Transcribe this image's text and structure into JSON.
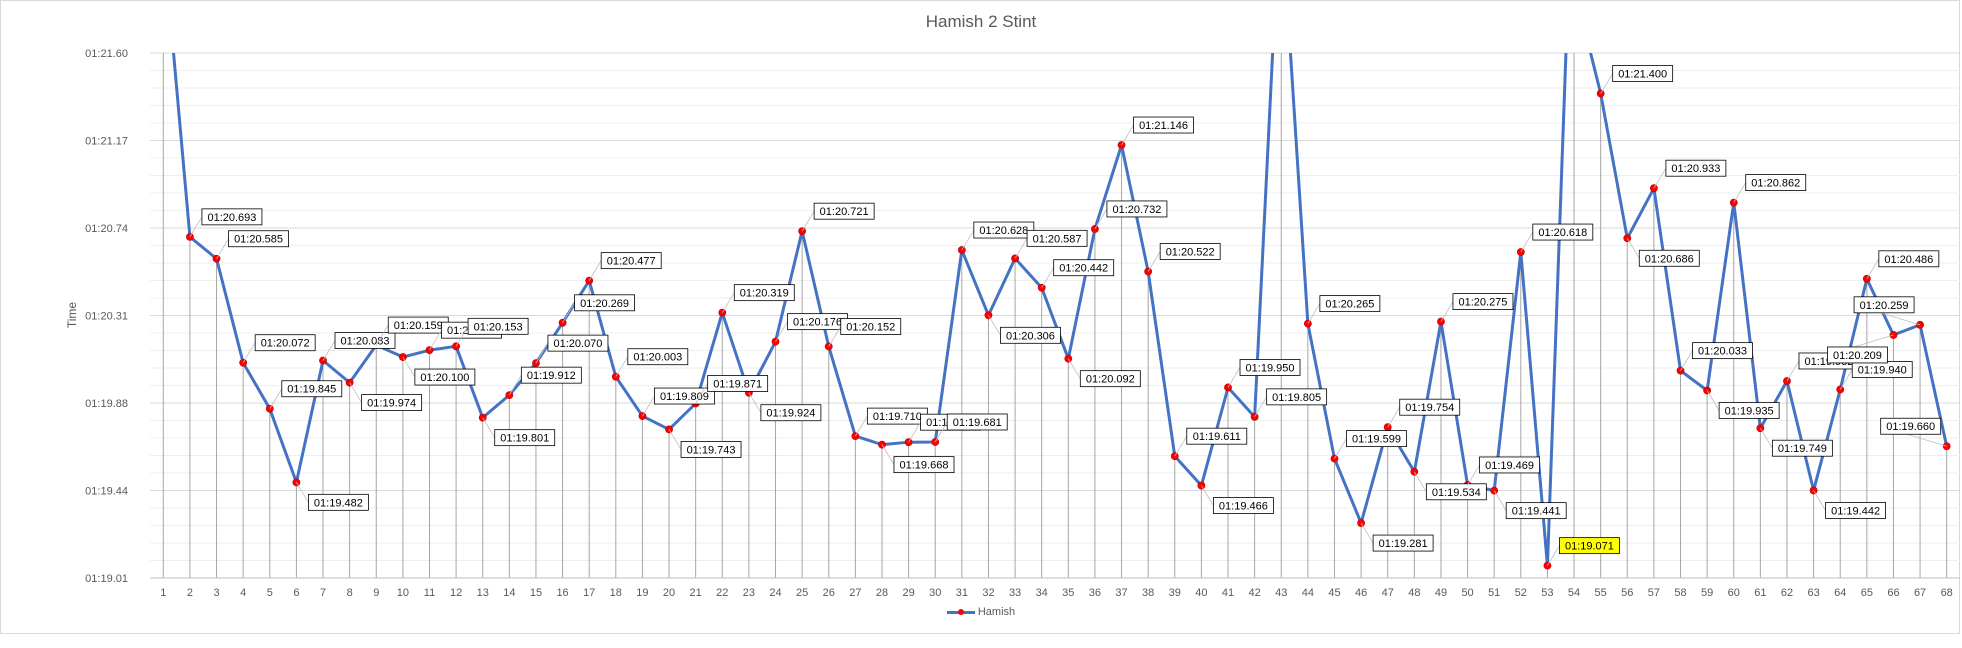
{
  "chart_data": {
    "type": "line",
    "title": "Hamish 2 Stint",
    "xlabel": "",
    "ylabel": "Time",
    "y_tick_labels": [
      "01:19.01",
      "01:19.44",
      "01:19.88",
      "01:20.31",
      "01:20.74",
      "01:21.17",
      "01:21.60"
    ],
    "ylim_seconds": [
      79.01,
      81.6
    ],
    "grid": true,
    "legend_position": "bottom",
    "series": [
      {
        "name": "Hamish",
        "color": "#4472c4",
        "marker_color": "#ff0000",
        "x": [
          1,
          2,
          3,
          4,
          5,
          6,
          7,
          8,
          9,
          10,
          11,
          12,
          13,
          14,
          15,
          16,
          17,
          18,
          19,
          20,
          21,
          22,
          23,
          24,
          25,
          26,
          27,
          28,
          29,
          30,
          31,
          32,
          33,
          34,
          35,
          36,
          37,
          38,
          39,
          40,
          41,
          42,
          43,
          44,
          45,
          46,
          47,
          48,
          49,
          50,
          51,
          52,
          53,
          54,
          55,
          56,
          57,
          58,
          59,
          60,
          61,
          62,
          63,
          64,
          65,
          66,
          67,
          68
        ],
        "values": [
          null,
          80.693,
          80.585,
          80.072,
          79.845,
          79.482,
          80.083,
          79.974,
          80.159,
          80.1,
          80.134,
          80.153,
          79.801,
          79.912,
          80.07,
          80.269,
          80.477,
          80.003,
          79.809,
          79.743,
          79.871,
          80.319,
          79.924,
          80.176,
          80.721,
          80.152,
          79.71,
          79.668,
          79.68,
          79.681,
          80.628,
          80.306,
          80.587,
          80.442,
          80.092,
          80.732,
          81.146,
          80.522,
          79.611,
          79.466,
          79.95,
          79.805,
          null,
          80.265,
          79.599,
          79.281,
          79.754,
          79.534,
          80.275,
          79.469,
          79.441,
          80.618,
          79.071,
          null,
          81.4,
          80.686,
          80.933,
          80.033,
          79.935,
          80.862,
          79.749,
          79.982,
          79.442,
          79.94,
          80.486,
          80.209,
          80.259,
          79.66
        ],
        "labels": [
          null,
          "01:20.693",
          "01:20.585",
          "01:20.072",
          "01:19.845",
          "01:19.482",
          "01:20.083",
          "01:19.974",
          "01:20.159",
          "01:20.100",
          "01:20.134",
          "01:20.153",
          "01:19.801",
          "01:19.912",
          "01:20.070",
          "01:20.269",
          "01:20.477",
          "01:20.003",
          "01:19.809",
          "01:19.743",
          "01:19.871",
          "01:20.319",
          "01:19.924",
          "01:20.176",
          "01:20.721",
          "01:20.152",
          "01:19.710",
          "01:19.668",
          "01:19.680",
          "01:19.681",
          "01:20.628",
          "01:20.306",
          "01:20.587",
          "01:20.442",
          "01:20.092",
          "01:20.732",
          "01:21.146",
          "01:20.522",
          "01:19.611",
          "01:19.466",
          "01:19.950",
          "01:19.805",
          null,
          "01:20.265",
          "01:19.599",
          "01:19.281",
          "01:19.754",
          "01:19.534",
          "01:20.275",
          "01:19.469",
          "01:19.441",
          "01:20.618",
          "01:19.071",
          null,
          "01:21.400",
          "01:20.686",
          "01:20.933",
          "01:20.033",
          "01:19.935",
          "01:20.862",
          "01:19.749",
          "01:19.982",
          "01:19.442",
          "01:19.940",
          "01:20.486",
          "01:20.209",
          "01:20.259",
          "01:19.660"
        ],
        "highlighted_label_x": 53,
        "highlight_fill": "#ffff00",
        "highlight_text_color": "#ff0000"
      }
    ]
  }
}
